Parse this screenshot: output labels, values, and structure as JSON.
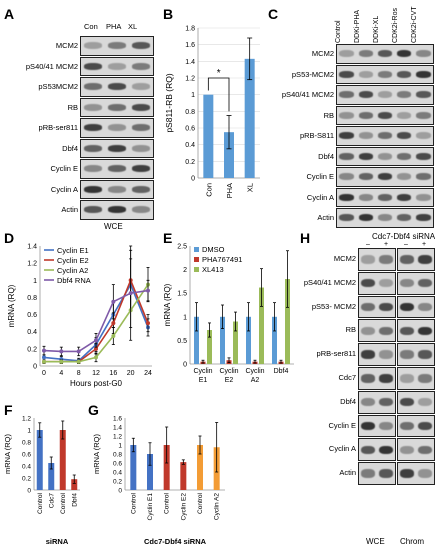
{
  "panel_letters": [
    "A",
    "B",
    "C",
    "D",
    "E",
    "F",
    "G",
    "H"
  ],
  "panelA": {
    "columns": [
      "Con",
      "PHA",
      "XL"
    ],
    "rows": [
      "MCM2",
      "pS40/41 MCM2",
      "pS53MCM2",
      "RB",
      "pRB-ser811",
      "Dbf4",
      "Cyclin E",
      "Cyclin A",
      "Actin"
    ],
    "footer": "WCE"
  },
  "panelC": {
    "columns": [
      "Control",
      "DDKi-PHA",
      "DDKi-XL",
      "CDK2i-Ros",
      "CDK2i-CVT"
    ],
    "rows": [
      "MCM2",
      "pS53-MCM2",
      "pS40/41 MCM2",
      "RB",
      "pRB-S811",
      "Dbf4",
      "Cyclin E",
      "Cyclin A",
      "Actin"
    ]
  },
  "panelH": {
    "title": "Cdc7-Dbf4 siRNA",
    "signs": [
      "–",
      "+",
      "–",
      "+"
    ],
    "rows": [
      "MCM2",
      "pS40/41 MCM2",
      "pS53- MCM2",
      "RB",
      "pRB-ser811",
      "Cdc7",
      "Dbf4",
      "Cyclin E",
      "Cyclin A",
      "Actin"
    ],
    "footers": [
      "WCE",
      "Chrom"
    ]
  },
  "chart_data": [
    {
      "id": "B",
      "type": "bar",
      "categories": [
        "Con",
        "PHA",
        "XL"
      ],
      "values": [
        1.0,
        0.55,
        1.43
      ],
      "errors": [
        0.0,
        0.2,
        0.25
      ],
      "ylabel": "pS811-RB (RQ)",
      "ylim": [
        0,
        1.8
      ],
      "yticks": [
        "0",
        "0.2",
        "0.4",
        "0.6",
        "0.8",
        "1",
        "1.2",
        "1.4",
        "1.6",
        "1.8"
      ],
      "annotation": "*",
      "color": "#5b9bd5"
    },
    {
      "id": "D",
      "type": "line",
      "x": [
        0,
        4,
        8,
        12,
        16,
        20,
        24
      ],
      "xticks": [
        "0",
        "4",
        "8",
        "12",
        "16",
        "20",
        "24"
      ],
      "xlabel": "Hours post-G0",
      "ylabel": "mRNA (RQ)",
      "ylim": [
        0,
        1.4
      ],
      "yticks": [
        "0",
        "0.2",
        "0.4",
        "0.6",
        "0.8",
        "1",
        "1.2",
        "1.4"
      ],
      "series": [
        {
          "name": "Cyclin E1",
          "color": "#4472c4",
          "values": [
            0.1,
            0.08,
            0.06,
            0.25,
            0.6,
            0.95,
            0.45
          ],
          "errors": [
            0.03,
            0.03,
            0.03,
            0.08,
            0.15,
            0.3,
            0.1
          ]
        },
        {
          "name": "Cyclin E2",
          "color": "#c0392b",
          "values": [
            0.05,
            0.05,
            0.05,
            0.2,
            0.5,
            1.0,
            0.5
          ],
          "errors": [
            0.02,
            0.02,
            0.02,
            0.06,
            0.12,
            0.35,
            0.1
          ]
        },
        {
          "name": "Cyclin A2",
          "color": "#9bbb59",
          "values": [
            0.05,
            0.05,
            0.05,
            0.1,
            0.35,
            0.65,
            0.95
          ],
          "errors": [
            0.02,
            0.02,
            0.02,
            0.05,
            0.1,
            0.2,
            0.2
          ]
        },
        {
          "name": "Dbf4 RNA",
          "color": "#7f5aa8",
          "values": [
            0.18,
            0.17,
            0.17,
            0.3,
            0.75,
            0.85,
            0.88
          ],
          "errors": [
            0.05,
            0.05,
            0.05,
            0.08,
            0.2,
            0.55,
            0.12
          ]
        }
      ]
    },
    {
      "id": "E",
      "type": "bar",
      "categories": [
        "Cyclin E1",
        "Cyclin E2",
        "Cyclin A2",
        "Dbf4"
      ],
      "tick_lines": [
        [
          "Cyclin",
          "E1"
        ],
        [
          "Cyclin",
          "E2"
        ],
        [
          "Cyclin",
          "A2"
        ],
        [
          "Dbf4",
          ""
        ]
      ],
      "ylabel": "mRNA (RQ)",
      "ylim": [
        0,
        2.5
      ],
      "yticks": [
        "0",
        "0.5",
        "1",
        "1.5",
        "2",
        "2.5"
      ],
      "series": [
        {
          "name": "DMSO",
          "color": "#5b9bd5",
          "values": [
            1.0,
            1.0,
            1.0,
            1.0
          ],
          "errors": [
            0.3,
            0.25,
            0.3,
            0.3
          ]
        },
        {
          "name": "PHA767491",
          "color": "#c0392b",
          "values": [
            0.05,
            0.08,
            0.05,
            0.05
          ],
          "errors": [
            0.03,
            0.05,
            0.03,
            0.03
          ]
        },
        {
          "name": "XL413",
          "color": "#9bbb59",
          "values": [
            0.72,
            0.9,
            1.62,
            1.8
          ],
          "errors": [
            0.15,
            0.2,
            0.4,
            0.6
          ]
        }
      ]
    },
    {
      "id": "F",
      "type": "bar",
      "categories": [
        "Control",
        "Cdc7",
        "Control",
        "Dbf4"
      ],
      "colors": [
        "#4472c4",
        "#4472c4",
        "#c0392b",
        "#c0392b"
      ],
      "values": [
        1.0,
        0.45,
        1.0,
        0.18
      ],
      "errors": [
        0.12,
        0.1,
        0.15,
        0.07
      ],
      "xlabel": "siRNA",
      "ylabel": "mRNA (RQ)",
      "ylim": [
        0,
        1.2
      ],
      "yticks": [
        "0",
        "0.2",
        "0.4",
        "0.6",
        "0.8",
        "1",
        "1.2"
      ]
    },
    {
      "id": "G",
      "type": "bar",
      "categories": [
        "Control",
        "Cyclin E1",
        "Control",
        "Cyclin E2",
        "Control",
        "Cyclin A2"
      ],
      "colors": [
        "#4472c4",
        "#4472c4",
        "#c0392b",
        "#c0392b",
        "#f39c35",
        "#f39c35"
      ],
      "values": [
        1.0,
        0.8,
        1.0,
        0.62,
        1.0,
        0.95
      ],
      "errors": [
        0.15,
        0.25,
        0.4,
        0.05,
        0.2,
        0.55
      ],
      "xlabel": "Cdc7-Dbf4 siRNA",
      "ylabel": "mRNA (RQ)",
      "ylim": [
        0,
        1.6
      ],
      "yticks": [
        "0",
        "0.2",
        "0.4",
        "0.6",
        "0.8",
        "1",
        "1.2",
        "1.4",
        "1.6"
      ]
    }
  ]
}
